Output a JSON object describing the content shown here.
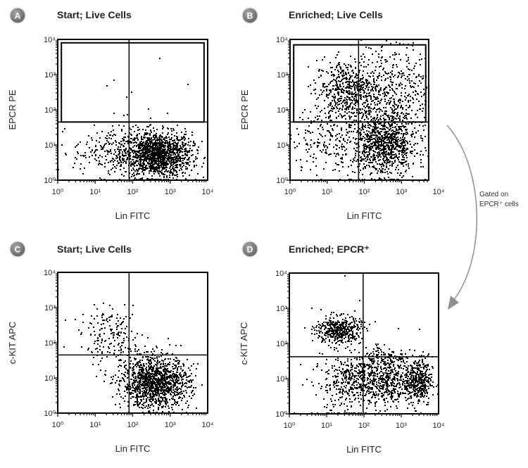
{
  "chart_data": [
    {
      "type": "scatter",
      "badge": "A",
      "title": "Start; Live Cells",
      "xlabel": "Lin FITC",
      "ylabel": "EPCR PE",
      "xscale": "log",
      "yscale": "log",
      "xlim": [
        1,
        10000
      ],
      "ylim": [
        1,
        10000
      ],
      "tick_labels": [
        "10⁰",
        "10¹",
        "10²",
        "10³",
        "10⁴"
      ],
      "quadrant_gate": {
        "x": 80,
        "y": 45
      },
      "gate_rect": {
        "x": [
          1.1,
          8000
        ],
        "y": [
          45,
          8000
        ],
        "label": "EPCR+"
      },
      "populations_log10": [
        {
          "cx": 2.65,
          "cy": 0.7,
          "sx": 0.45,
          "sy": 0.32,
          "n": 1500
        },
        {
          "cx": 1.4,
          "cy": 0.8,
          "sx": 0.5,
          "sy": 0.35,
          "n": 220
        }
      ],
      "extra_points": [
        [
          30,
          650
        ],
        [
          20,
          450
        ],
        [
          65,
          220
        ],
        [
          90,
          300
        ],
        [
          500,
          2700
        ],
        [
          2800,
          500
        ],
        [
          250,
          100
        ],
        [
          30,
          75
        ],
        [
          800,
          75
        ],
        [
          55,
          65
        ],
        [
          70,
          70
        ]
      ]
    },
    {
      "type": "scatter",
      "badge": "B",
      "title": "Enriched; Live Cells",
      "xlabel": "Lin FITC",
      "ylabel": "EPCR PE",
      "xscale": "log",
      "yscale": "log",
      "xlim": [
        1,
        5400
      ],
      "ylim": [
        1,
        10000
      ],
      "tick_labels": [
        "10⁰",
        "10¹",
        "10²",
        "10³",
        "10⁴"
      ],
      "quadrant_gate": {
        "x": 70,
        "y": 45
      },
      "gate_rect": {
        "x": [
          1.1,
          4500
        ],
        "y": [
          45,
          7000
        ],
        "label": "EPCR+"
      },
      "populations_log10": [
        {
          "cx": 1.5,
          "cy": 2.5,
          "sx": 0.42,
          "sy": 0.45,
          "n": 550
        },
        {
          "cx": 2.7,
          "cy": 2.6,
          "sx": 0.55,
          "sy": 0.65,
          "n": 450
        },
        {
          "cx": 2.55,
          "cy": 1.0,
          "sx": 0.42,
          "sy": 0.45,
          "n": 1000
        },
        {
          "cx": 1.2,
          "cy": 1.1,
          "sx": 0.6,
          "sy": 0.5,
          "n": 220
        }
      ],
      "extra_points": []
    },
    {
      "type": "scatter",
      "badge": "C",
      "title": "Start; Live Cells",
      "xlabel": "Lin FITC",
      "ylabel": "c-KIT APC",
      "xscale": "log",
      "yscale": "log",
      "xlim": [
        1,
        10000
      ],
      "ylim": [
        1,
        10000
      ],
      "tick_labels": [
        "10⁰",
        "10¹",
        "10²",
        "10³",
        "10⁴"
      ],
      "quadrant_gate": {
        "x": 80,
        "y": 45
      },
      "gate_rect": null,
      "populations_log10": [
        {
          "cx": 2.6,
          "cy": 0.8,
          "sx": 0.45,
          "sy": 0.33,
          "n": 1200
        },
        {
          "cx": 1.4,
          "cy": 2.2,
          "sx": 0.4,
          "sy": 0.35,
          "n": 160
        },
        {
          "cx": 2.3,
          "cy": 1.4,
          "sx": 0.5,
          "sy": 0.3,
          "n": 160
        }
      ],
      "extra_points": []
    },
    {
      "type": "scatter",
      "badge": "D",
      "title": "Enriched; EPCR⁺",
      "xlabel": "Lin FITC",
      "ylabel": "c-KIT APC",
      "xscale": "log",
      "yscale": "log",
      "xlim": [
        1,
        10000
      ],
      "ylim": [
        1,
        10000
      ],
      "tick_labels": [
        "10⁰",
        "10¹",
        "10²",
        "10³",
        "10⁴"
      ],
      "quadrant_gate": {
        "x": 95,
        "y": 42
      },
      "gate_rect": null,
      "populations_log10": [
        {
          "cx": 1.3,
          "cy": 2.35,
          "sx": 0.3,
          "sy": 0.2,
          "n": 450
        },
        {
          "cx": 1.7,
          "cy": 1.0,
          "sx": 0.4,
          "sy": 0.3,
          "n": 300
        },
        {
          "cx": 2.7,
          "cy": 0.95,
          "sx": 0.33,
          "sy": 0.35,
          "n": 420
        },
        {
          "cx": 3.45,
          "cy": 0.9,
          "sx": 0.18,
          "sy": 0.35,
          "n": 380
        },
        {
          "cx": 2.5,
          "cy": 1.6,
          "sx": 0.3,
          "sy": 0.2,
          "n": 90
        },
        {
          "cx": 1.5,
          "cy": 0.6,
          "sx": 0.5,
          "sy": 0.5,
          "n": 150
        }
      ],
      "extra_points": [
        [
          30,
          8000
        ],
        [
          3000,
          240
        ],
        [
          800,
          250
        ]
      ]
    }
  ],
  "annotation": {
    "line1": "Gated on",
    "line2": "EPCR⁺ cells"
  },
  "colors": {
    "dots": "#000000",
    "arrow": "#8f8f8f",
    "badge": "#7a7a7a"
  }
}
